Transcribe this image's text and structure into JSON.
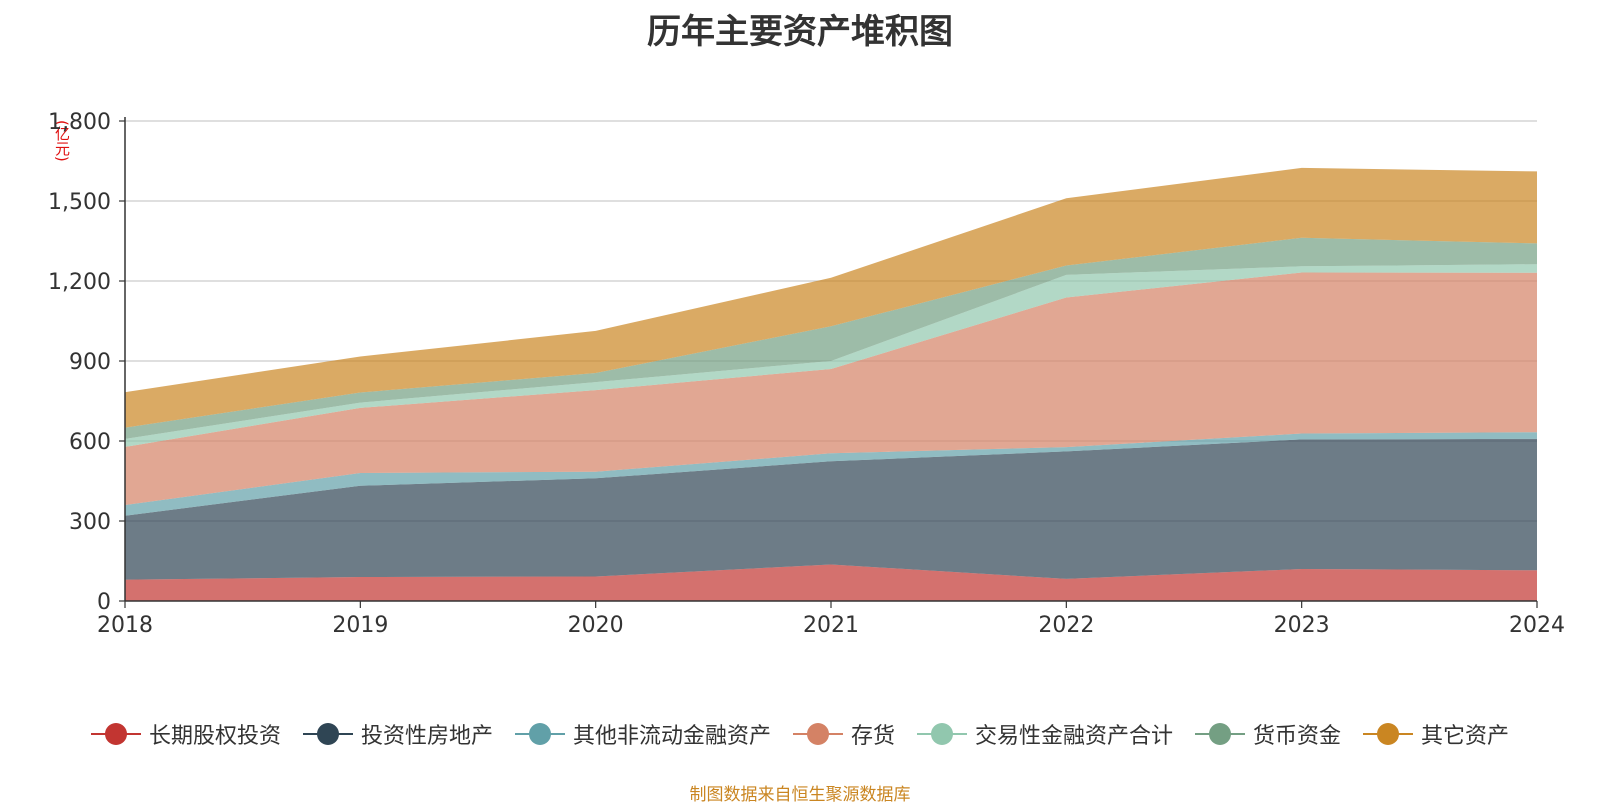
{
  "chart_data": {
    "type": "area",
    "stacked": true,
    "title": "历年主要资产堆积图",
    "ylabel": "(亿元)",
    "xlabel": "",
    "categories": [
      "2018",
      "2019",
      "2020",
      "2021",
      "2022",
      "2023",
      "2024"
    ],
    "ylim": [
      0,
      1800
    ],
    "yticks": [
      0,
      300,
      600,
      900,
      1200,
      1500,
      1800
    ],
    "ytick_labels": [
      "0",
      "300",
      "600",
      "900",
      "1,200",
      "1,500",
      "1,800"
    ],
    "grid": true,
    "legend_position": "bottom",
    "series": [
      {
        "name": "长期股权投资",
        "color": "#c23531",
        "values": [
          80,
          90,
          92,
          137,
          83,
          120,
          115
        ]
      },
      {
        "name": "投资性房地产",
        "color": "#2f4554",
        "values": [
          240,
          342,
          368,
          387,
          478,
          486,
          493
        ]
      },
      {
        "name": "其他非流动金融资产",
        "color": "#61a0a8",
        "values": [
          40,
          48,
          25,
          30,
          16,
          22,
          25
        ]
      },
      {
        "name": "存货",
        "color": "#d48265",
        "values": [
          218,
          244,
          306,
          316,
          561,
          604,
          598
        ]
      },
      {
        "name": "交易性金融资产合计",
        "color": "#91c7ae",
        "values": [
          30,
          20,
          30,
          30,
          85,
          23,
          32
        ]
      },
      {
        "name": "货币资金",
        "color": "#749f83",
        "values": [
          42,
          38,
          34,
          130,
          35,
          107,
          78
        ]
      },
      {
        "name": "其它资产",
        "color": "#ca8622",
        "values": [
          133,
          135,
          158,
          182,
          252,
          262,
          270
        ]
      }
    ],
    "source_note": "制图数据来自恒生聚源数据库",
    "source_color": "#ca8622"
  }
}
